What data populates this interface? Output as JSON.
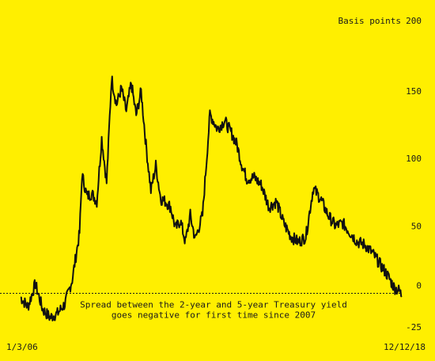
{
  "chart_data": {
    "type": "line",
    "title": "",
    "ylabel": "Basis points",
    "x_start_label": "1/3/06",
    "x_end_label": "12/12/18",
    "ylim": [
      -25,
      200
    ],
    "yticks": [
      200,
      150,
      100,
      50,
      0,
      -25
    ],
    "zero_line": 0,
    "annotation": [
      "Spread between the 2-year and 5-year Treasury yield",
      "goes negative for first time since 2007"
    ],
    "series": [
      {
        "x": [
          "2006-01",
          "2006-04",
          "2006-07",
          "2006-10",
          "2007-01",
          "2007-04",
          "2007-07",
          "2007-10",
          "2008-01",
          "2008-02",
          "2008-04",
          "2008-06",
          "2008-08",
          "2008-10",
          "2008-12",
          "2009-02",
          "2009-04",
          "2009-06",
          "2009-08",
          "2009-10",
          "2009-12",
          "2010-02",
          "2010-04",
          "2010-06",
          "2010-08",
          "2010-10",
          "2010-12",
          "2011-02",
          "2011-04",
          "2011-06",
          "2011-08",
          "2011-10",
          "2011-12",
          "2012-03",
          "2012-06",
          "2012-09",
          "2012-12",
          "2013-03",
          "2013-05",
          "2013-07",
          "2013-09",
          "2013-12",
          "2014-03",
          "2014-06",
          "2014-09",
          "2014-12",
          "2015-03",
          "2015-06",
          "2015-09",
          "2015-12",
          "2016-03",
          "2016-06",
          "2016-09",
          "2016-12",
          "2017-03",
          "2017-06",
          "2017-09",
          "2017-12",
          "2018-03",
          "2018-06",
          "2018-09",
          "2018-11",
          "2018-12"
        ],
        "values": [
          -3,
          -10,
          7,
          -12,
          -18,
          -15,
          -8,
          10,
          45,
          88,
          72,
          74,
          68,
          115,
          82,
          160,
          140,
          152,
          135,
          156,
          132,
          150,
          110,
          76,
          95,
          70,
          68,
          64,
          48,
          54,
          38,
          58,
          40,
          58,
          133,
          122,
          128,
          118,
          110,
          95,
          85,
          86,
          80,
          64,
          68,
          52,
          42,
          38,
          42,
          78,
          70,
          58,
          50,
          52,
          45,
          38,
          36,
          30,
          22,
          14,
          4,
          2,
          -2
        ]
      }
    ]
  }
}
